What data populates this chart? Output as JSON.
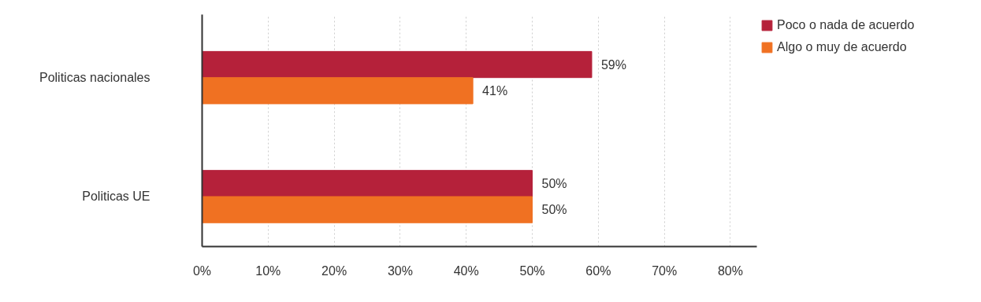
{
  "chart_data": {
    "type": "bar",
    "orientation": "horizontal",
    "categories": [
      "Politicas nacionales",
      "Politicas UE"
    ],
    "series": [
      {
        "name": "Poco o nada de acuerdo",
        "color": "#b5213a",
        "values": [
          59,
          50
        ],
        "value_labels": [
          "59%",
          "50%"
        ]
      },
      {
        "name": "Algo o muy de acuerdo",
        "color": "#f07122",
        "values": [
          41,
          50
        ],
        "value_labels": [
          "41%",
          "50%"
        ]
      }
    ],
    "xlim": [
      0,
      84
    ],
    "xticks": [
      {
        "value": 0,
        "label": "0%"
      },
      {
        "value": 10,
        "label": "10%"
      },
      {
        "value": 20,
        "label": "20%"
      },
      {
        "value": 30,
        "label": "30%"
      },
      {
        "value": 40,
        "label": "40%"
      },
      {
        "value": 50,
        "label": "50%"
      },
      {
        "value": 60,
        "label": "60%"
      },
      {
        "value": 70,
        "label": "70%"
      },
      {
        "value": 80,
        "label": "80%"
      }
    ],
    "grid": "x",
    "legend": "right"
  }
}
